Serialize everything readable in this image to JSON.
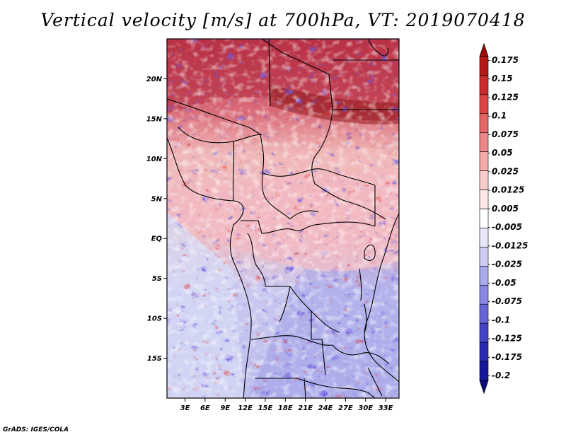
{
  "title": "Vertical velocity [m/s] at 700hPa, VT: 2019070418",
  "credit": "GrADS: IGES/COLA",
  "map": {
    "lat_labels": [
      "20N",
      "15N",
      "10N",
      "5N",
      "EQ",
      "5S",
      "10S",
      "15S"
    ],
    "lon_labels": [
      "3E",
      "6E",
      "9E",
      "12E",
      "15E",
      "18E",
      "21E",
      "24E",
      "27E",
      "30E",
      "33E"
    ],
    "lat_values": [
      20,
      15,
      10,
      5,
      0,
      -5,
      -10,
      -15
    ],
    "lon_values": [
      3,
      6,
      9,
      12,
      15,
      18,
      21,
      24,
      27,
      30,
      33
    ],
    "lat_range": [
      -20,
      25
    ],
    "lon_range": [
      0.3,
      35
    ]
  },
  "colorbar": {
    "labels": [
      "0.175",
      "0.15",
      "0.125",
      "0.1",
      "0.075",
      "0.05",
      "0.025",
      "0.0125",
      "0.005",
      "-0.005",
      "-0.0125",
      "-0.025",
      "-0.05",
      "-0.075",
      "-0.1",
      "-0.125",
      "-0.175",
      "-0.2"
    ],
    "colors": [
      "#9e0c0c",
      "#b81717",
      "#cc2a2a",
      "#dc4343",
      "#e66565",
      "#ee8888",
      "#f5aaaa",
      "#fbcccc",
      "#fde8e8",
      "#ffffff",
      "#e8e8fa",
      "#ccccf4",
      "#aaaaee",
      "#8888e4",
      "#6565d8",
      "#4343c8",
      "#2a2ab4",
      "#17179c",
      "#0c0c80"
    ]
  }
}
